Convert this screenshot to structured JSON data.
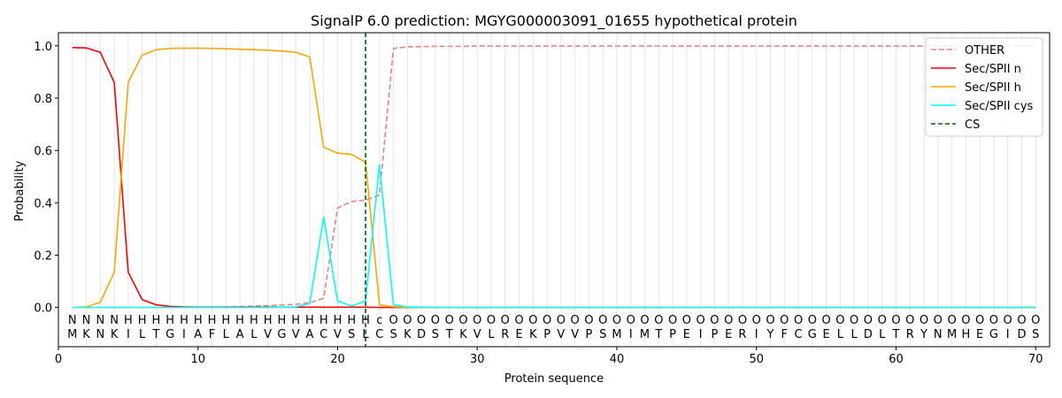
{
  "chart_data": {
    "type": "line",
    "title": "SignalP 6.0 prediction: MGYG000003091_01655 hypothetical protein",
    "xlabel": "Protein sequence",
    "ylabel": "Probability",
    "xlim": [
      0,
      71
    ],
    "ylim": [
      -0.15,
      1.05
    ],
    "xticks": [
      0,
      10,
      20,
      30,
      40,
      50,
      60,
      70
    ],
    "yticks": [
      0.0,
      0.2,
      0.4,
      0.6,
      0.8,
      1.0
    ],
    "ytick_labels": [
      "0.0",
      "0.2",
      "0.4",
      "0.6",
      "0.8",
      "1.0"
    ],
    "grid": "vertical lines at each residue",
    "legend_position": "top-right",
    "sequence": [
      "M",
      "K",
      "N",
      "K",
      "I",
      "L",
      "T",
      "G",
      "I",
      "A",
      "F",
      "L",
      "A",
      "L",
      "V",
      "G",
      "V",
      "A",
      "C",
      "V",
      "S",
      "L",
      "C",
      "S",
      "K",
      "D",
      "S",
      "T",
      "K",
      "V",
      "L",
      "R",
      "E",
      "K",
      "P",
      "V",
      "V",
      "P",
      "S",
      "M",
      "I",
      "M",
      "T",
      "P",
      "E",
      "I",
      "P",
      "E",
      "R",
      "I",
      "Y",
      "F",
      "C",
      "G",
      "E",
      "L",
      "L",
      "D",
      "L",
      "T",
      "R",
      "Y",
      "N",
      "M",
      "H",
      "E",
      "G",
      "I",
      "D",
      "S"
    ],
    "region_labels": [
      "N",
      "N",
      "N",
      "N",
      "H",
      "H",
      "H",
      "H",
      "H",
      "H",
      "H",
      "H",
      "H",
      "H",
      "H",
      "H",
      "H",
      "H",
      "H",
      "H",
      "H",
      "H",
      "c",
      "O",
      "O",
      "O",
      "O",
      "O",
      "O",
      "O",
      "O",
      "O",
      "O",
      "O",
      "O",
      "O",
      "O",
      "O",
      "O",
      "O",
      "O",
      "O",
      "O",
      "O",
      "O",
      "O",
      "O",
      "O",
      "O",
      "O",
      "O",
      "O",
      "O",
      "O",
      "O",
      "O",
      "O",
      "O",
      "O",
      "O",
      "O",
      "O",
      "O",
      "O",
      "O",
      "O",
      "O",
      "O",
      "O",
      "O"
    ],
    "region_colors": {
      "N": "#ff0000",
      "H": "#ffa500",
      "c": "#00ffff",
      "O": "#808080"
    },
    "cleavage_site": 22,
    "series": [
      {
        "name": "OTHER",
        "color": "#f08080",
        "dash": true,
        "values": [
          0.0,
          0.0,
          0.0,
          0.0,
          0.0,
          0.0,
          0.0,
          0.0,
          0.0,
          0.0,
          0.0,
          0.002,
          0.003,
          0.005,
          0.007,
          0.009,
          0.012,
          0.018,
          0.035,
          0.38,
          0.405,
          0.41,
          0.43,
          0.99,
          0.996,
          0.997,
          0.998,
          0.998,
          0.998,
          0.999,
          0.999,
          0.999,
          0.999,
          0.999,
          0.999,
          0.999,
          0.999,
          0.999,
          0.999,
          0.999,
          0.999,
          0.999,
          0.999,
          0.999,
          0.999,
          0.999,
          0.999,
          0.999,
          0.999,
          0.999,
          0.999,
          0.999,
          0.999,
          0.999,
          0.999,
          0.999,
          0.999,
          0.999,
          0.999,
          0.999,
          0.999,
          0.999,
          0.999,
          0.999,
          0.999,
          0.999,
          0.999,
          0.999,
          0.999,
          0.999
        ]
      },
      {
        "name": "Sec/SPII n",
        "color": "#ff0000",
        "dash": false,
        "values": [
          0.993,
          0.992,
          0.975,
          0.86,
          0.135,
          0.03,
          0.01,
          0.004,
          0.002,
          0.001,
          0.001,
          0.001,
          0.001,
          0.001,
          0.001,
          0.001,
          0.001,
          0.001,
          0.001,
          0.001,
          0.001,
          0.001,
          0.0,
          0.0,
          0.0,
          0.0,
          0.0,
          0.0,
          0.0,
          0.0,
          0.0,
          0.0,
          0.0,
          0.0,
          0.0,
          0.0,
          0.0,
          0.0,
          0.0,
          0.0,
          0.0,
          0.0,
          0.0,
          0.0,
          0.0,
          0.0,
          0.0,
          0.0,
          0.0,
          0.0,
          0.0,
          0.0,
          0.0,
          0.0,
          0.0,
          0.0,
          0.0,
          0.0,
          0.0,
          0.0,
          0.0,
          0.0,
          0.0,
          0.0,
          0.0,
          0.0,
          0.0,
          0.0,
          0.0,
          0.0
        ]
      },
      {
        "name": "Sec/SPII h",
        "color": "#ffa500",
        "dash": false,
        "values": [
          0.0,
          0.002,
          0.02,
          0.135,
          0.86,
          0.965,
          0.985,
          0.99,
          0.991,
          0.991,
          0.99,
          0.989,
          0.987,
          0.985,
          0.983,
          0.98,
          0.975,
          0.958,
          0.612,
          0.59,
          0.585,
          0.555,
          0.01,
          0.003,
          0.0,
          0.0,
          0.0,
          0.0,
          0.0,
          0.0,
          0.0,
          0.0,
          0.0,
          0.0,
          0.0,
          0.0,
          0.0,
          0.0,
          0.0,
          0.0,
          0.0,
          0.0,
          0.0,
          0.0,
          0.0,
          0.0,
          0.0,
          0.0,
          0.0,
          0.0,
          0.0,
          0.0,
          0.0,
          0.0,
          0.0,
          0.0,
          0.0,
          0.0,
          0.0,
          0.0,
          0.0,
          0.0,
          0.0,
          0.0,
          0.0,
          0.0,
          0.0,
          0.0,
          0.0,
          0.0
        ]
      },
      {
        "name": "Sec/SPII cys",
        "color": "#00ffff",
        "dash": false,
        "values": [
          0.0,
          0.0,
          0.0,
          0.0,
          0.0,
          0.0,
          0.0,
          0.0,
          0.0,
          0.0,
          0.0,
          0.0,
          0.0,
          0.0,
          0.0,
          0.001,
          0.002,
          0.015,
          0.345,
          0.025,
          0.005,
          0.025,
          0.545,
          0.01,
          0.002,
          0.001,
          0.0,
          0.0,
          0.0,
          0.0,
          0.0,
          0.0,
          0.0,
          0.0,
          0.0,
          0.0,
          0.0,
          0.0,
          0.0,
          0.0,
          0.0,
          0.0,
          0.0,
          0.0,
          0.0,
          0.0,
          0.0,
          0.0,
          0.0,
          0.0,
          0.0,
          0.0,
          0.0,
          0.0,
          0.0,
          0.0,
          0.0,
          0.0,
          0.0,
          0.0,
          0.0,
          0.0,
          0.0,
          0.0,
          0.0,
          0.0,
          0.0,
          0.0,
          0.0,
          0.0
        ]
      }
    ],
    "cs_legend": {
      "name": "CS",
      "color": "#006400"
    }
  }
}
